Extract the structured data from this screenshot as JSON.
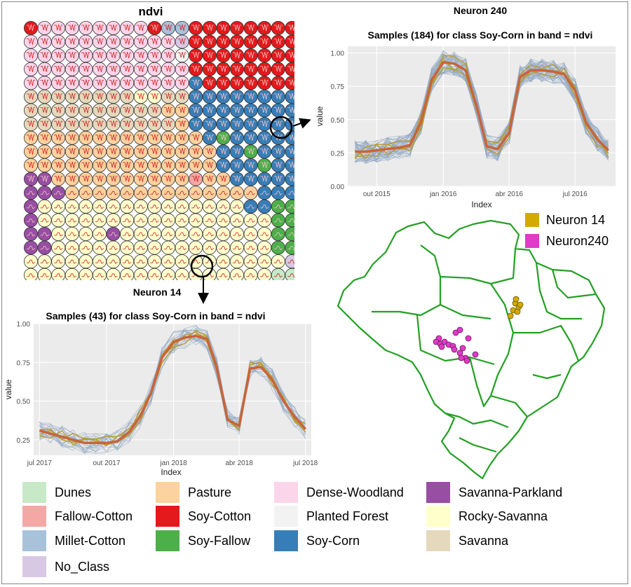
{
  "som": {
    "title": "ndvi",
    "grid": [
      "RPPPPPPPPRMMRRRRRRRR",
      "PPPPPPPPPPPLRRRRRRRR",
      "PPPPPPPPPPPFRRRRRRRR",
      "PPPPPPPPPPPPRRRRRRRR",
      "PPPPPPPPPPPPCRRRRRRR",
      "DDDDDDDDYYDDCCCCCCCC",
      "DDDDDDDDDDSSCCCCCCCC",
      "DDDDDDDDDDDSCCCCCCCC",
      "SSSSSSSSSSSSSCGCCCCC",
      "SSSSSSSSSSSSSSCCGCCC",
      "SSSSSSSSSSSSSSCCCGCC",
      "VVSSSSSSSSSSTSSCCCCC",
      "VVVSSSSSSSSSSSSSSCCC",
      "VYYYYYYYYYYYYYYYCCGG",
      "VYYYYYYYYYYYYYYYYYGG",
      "VVYYYYVYYYYYYYYYYYGG",
      "VVYYYYYYYYYYYYYYYYGG",
      "YYYYYYYYYYYYYYYYYYYL",
      "YYYYYYYYYYYYYYYYYYNN",
      "YYYYYYYYYYYYCGYYYYYY"
    ]
  },
  "map_legend": [
    {
      "label": "Neuron 14",
      "color": "#d4aa00"
    },
    {
      "label": "Neuron240",
      "color": "#e03ac8"
    }
  ],
  "class_legend": [
    {
      "label": "Dunes",
      "color": "#c8e9c8"
    },
    {
      "label": "Fallow-Cotton",
      "color": "#f4a8a6"
    },
    {
      "label": "Millet-Cotton",
      "color": "#a8c2da"
    },
    {
      "label": "No_Class",
      "color": "#d9c8e3"
    },
    {
      "label": "Pasture",
      "color": "#fcd29e"
    },
    {
      "label": "Soy-Cotton",
      "color": "#e3191b"
    },
    {
      "label": "Soy-Fallow",
      "color": "#4daf4a"
    },
    {
      "label": "Dense-Woodland",
      "color": "#fbd5ea"
    },
    {
      "label": "Planted Forest",
      "color": "#f2f2f2"
    },
    {
      "label": "Soy-Corn",
      "color": "#377eb8"
    },
    {
      "label": "Savanna-Parkland",
      "color": "#984ea3"
    },
    {
      "label": "Rocky-Savanna",
      "color": "#ffffcc"
    },
    {
      "label": "Savanna",
      "color": "#e5d9bd"
    }
  ],
  "chart_data": [
    {
      "type": "line",
      "title": "Neuron 240",
      "subtitle": "Samples (184) for class Soy-Corn in  band = ndvi",
      "xlabel": "Index",
      "ylabel": "value",
      "x_ticks": [
        "out 2015",
        "jan 2016",
        "abr 2016",
        "jul 2016"
      ],
      "y_ticks": [
        "0.00",
        "0.25",
        "0.50",
        "0.75",
        "1.00"
      ],
      "ylim": [
        0,
        1.05
      ],
      "grid": true,
      "x": [
        "2015-09-01",
        "2015-09-16",
        "2015-10-01",
        "2015-10-16",
        "2015-11-01",
        "2015-11-16",
        "2015-12-01",
        "2015-12-16",
        "2016-01-01",
        "2016-01-16",
        "2016-02-01",
        "2016-02-16",
        "2016-03-01",
        "2016-03-16",
        "2016-04-01",
        "2016-04-16",
        "2016-05-01",
        "2016-05-16",
        "2016-06-01",
        "2016-06-16",
        "2016-07-01",
        "2016-07-16",
        "2016-08-01",
        "2016-08-16"
      ],
      "series": [
        {
          "values": [
            0.26,
            0.26,
            0.27,
            0.28,
            0.29,
            0.31,
            0.48,
            0.8,
            0.93,
            0.92,
            0.87,
            0.6,
            0.3,
            0.28,
            0.4,
            0.82,
            0.87,
            0.87,
            0.86,
            0.84,
            0.72,
            0.48,
            0.35,
            0.27
          ]
        }
      ]
    },
    {
      "type": "line",
      "title": "Neuron 14",
      "subtitle": "Samples (43) for class Soy-Corn in  band = ndvi",
      "xlabel": "Index",
      "ylabel": "value",
      "x_ticks": [
        "jul 2017",
        "out 2017",
        "jan 2018",
        "abr 2018",
        "jul 2018"
      ],
      "y_ticks": [
        "0.25",
        "0.50",
        "0.75",
        "1.00"
      ],
      "ylim": [
        0.15,
        1.0
      ],
      "grid": true,
      "x": [
        "2017-07-01",
        "2017-07-16",
        "2017-08-01",
        "2017-08-16",
        "2017-09-01",
        "2017-09-16",
        "2017-10-01",
        "2017-10-16",
        "2017-11-01",
        "2017-11-16",
        "2017-12-01",
        "2017-12-16",
        "2018-01-01",
        "2018-01-16",
        "2018-02-01",
        "2018-02-16",
        "2018-03-01",
        "2018-03-16",
        "2018-04-01",
        "2018-04-16",
        "2018-05-01",
        "2018-05-16",
        "2018-06-01",
        "2018-06-16",
        "2018-07-01"
      ],
      "series": [
        {
          "values": [
            0.31,
            0.29,
            0.27,
            0.25,
            0.23,
            0.23,
            0.23,
            0.24,
            0.3,
            0.4,
            0.55,
            0.78,
            0.88,
            0.91,
            0.92,
            0.9,
            0.72,
            0.38,
            0.34,
            0.71,
            0.72,
            0.64,
            0.5,
            0.4,
            0.32
          ]
        }
      ]
    }
  ]
}
